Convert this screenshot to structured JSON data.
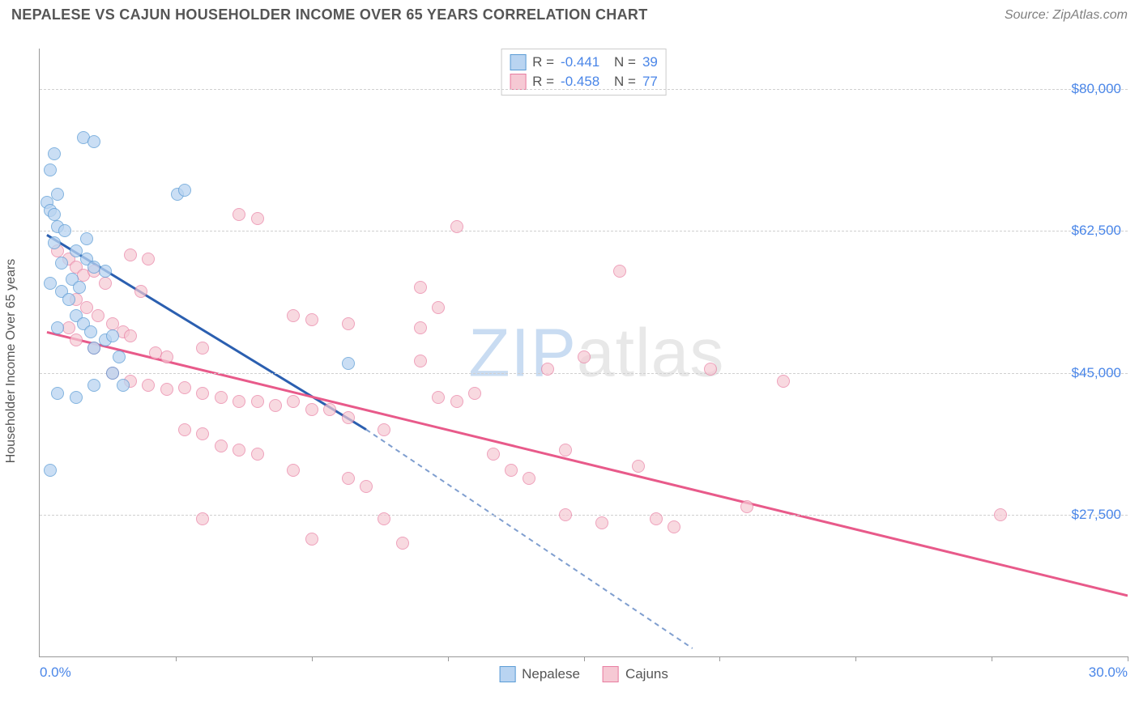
{
  "header": {
    "title": "NEPALESE VS CAJUN HOUSEHOLDER INCOME OVER 65 YEARS CORRELATION CHART",
    "source_prefix": "Source: ",
    "source_name": "ZipAtlas.com"
  },
  "watermark": {
    "part1": "ZIP",
    "part2": "atlas"
  },
  "chart": {
    "type": "scatter",
    "background_color": "#ffffff",
    "grid_color": "#d0d0d0",
    "axis_color": "#999999",
    "ylabel": "Householder Income Over 65 years",
    "ylabel_color": "#555555",
    "xlim": [
      0,
      30
    ],
    "ylim": [
      10000,
      85000
    ],
    "xrange_labels": {
      "min": "0.0%",
      "max": "30.0%"
    },
    "xrange_label_color": "#4a86e8",
    "yticks": [
      {
        "v": 80000,
        "label": "$80,000"
      },
      {
        "v": 62500,
        "label": "$62,500"
      },
      {
        "v": 45000,
        "label": "$45,000"
      },
      {
        "v": 27500,
        "label": "$27,500"
      }
    ],
    "ytick_label_color": "#4a86e8",
    "xticks_positions": [
      3.75,
      7.5,
      11.25,
      15,
      18.75,
      22.5,
      26.25,
      30
    ],
    "point_radius": 8,
    "point_border_width": 1.2,
    "series": [
      {
        "name": "Nepalese",
        "fill": "#b9d4f1",
        "stroke": "#5a9bd5",
        "line_color": "#2b5fb0",
        "line_dash": "6 5",
        "opacity": 0.75,
        "R": "-0.441",
        "N": "39",
        "reg_solid": {
          "x1": 0.2,
          "y1": 62000,
          "x2": 9.0,
          "y2": 38000
        },
        "reg_dash": {
          "x1": 9.0,
          "y1": 38000,
          "x2": 18.0,
          "y2": 11000
        },
        "points": [
          {
            "x": 0.3,
            "y": 70000
          },
          {
            "x": 0.4,
            "y": 72000
          },
          {
            "x": 0.5,
            "y": 67000
          },
          {
            "x": 1.2,
            "y": 74000
          },
          {
            "x": 1.5,
            "y": 73500
          },
          {
            "x": 0.2,
            "y": 66000
          },
          {
            "x": 0.3,
            "y": 65000
          },
          {
            "x": 0.5,
            "y": 63000
          },
          {
            "x": 0.4,
            "y": 61000
          },
          {
            "x": 1.0,
            "y": 60000
          },
          {
            "x": 1.3,
            "y": 59000
          },
          {
            "x": 1.5,
            "y": 58000
          },
          {
            "x": 0.3,
            "y": 56000
          },
          {
            "x": 0.6,
            "y": 55000
          },
          {
            "x": 0.8,
            "y": 54000
          },
          {
            "x": 1.0,
            "y": 52000
          },
          {
            "x": 1.2,
            "y": 51000
          },
          {
            "x": 1.4,
            "y": 50000
          },
          {
            "x": 1.8,
            "y": 49000
          },
          {
            "x": 2.0,
            "y": 49500
          },
          {
            "x": 1.5,
            "y": 48000
          },
          {
            "x": 2.2,
            "y": 47000
          },
          {
            "x": 0.5,
            "y": 42500
          },
          {
            "x": 1.0,
            "y": 42000
          },
          {
            "x": 1.5,
            "y": 43500
          },
          {
            "x": 0.3,
            "y": 33000
          },
          {
            "x": 3.8,
            "y": 67000
          },
          {
            "x": 4.0,
            "y": 67500
          },
          {
            "x": 8.5,
            "y": 46200
          },
          {
            "x": 1.8,
            "y": 57500
          },
          {
            "x": 0.6,
            "y": 58500
          },
          {
            "x": 0.9,
            "y": 56500
          },
          {
            "x": 1.1,
            "y": 55500
          },
          {
            "x": 0.4,
            "y": 64500
          },
          {
            "x": 0.7,
            "y": 62500
          },
          {
            "x": 1.3,
            "y": 61500
          },
          {
            "x": 0.5,
            "y": 50500
          },
          {
            "x": 2.0,
            "y": 45000
          },
          {
            "x": 2.3,
            "y": 43500
          }
        ]
      },
      {
        "name": "Cajuns",
        "fill": "#f6c9d4",
        "stroke": "#e87ca0",
        "line_color": "#e85a8a",
        "line_dash": "",
        "opacity": 0.7,
        "R": "-0.458",
        "N": "77",
        "reg_solid": {
          "x1": 0.2,
          "y1": 50000,
          "x2": 30.0,
          "y2": 17500
        },
        "reg_dash": null,
        "points": [
          {
            "x": 0.5,
            "y": 60000
          },
          {
            "x": 0.8,
            "y": 59000
          },
          {
            "x": 1.0,
            "y": 58000
          },
          {
            "x": 1.2,
            "y": 57000
          },
          {
            "x": 1.5,
            "y": 57500
          },
          {
            "x": 1.8,
            "y": 56000
          },
          {
            "x": 1.0,
            "y": 54000
          },
          {
            "x": 1.3,
            "y": 53000
          },
          {
            "x": 1.6,
            "y": 52000
          },
          {
            "x": 2.0,
            "y": 51000
          },
          {
            "x": 2.3,
            "y": 50000
          },
          {
            "x": 0.8,
            "y": 50500
          },
          {
            "x": 1.0,
            "y": 49000
          },
          {
            "x": 1.5,
            "y": 48000
          },
          {
            "x": 2.5,
            "y": 49500
          },
          {
            "x": 2.8,
            "y": 55000
          },
          {
            "x": 2.5,
            "y": 59500
          },
          {
            "x": 3.0,
            "y": 59000
          },
          {
            "x": 3.2,
            "y": 47500
          },
          {
            "x": 3.5,
            "y": 47000
          },
          {
            "x": 2.0,
            "y": 45000
          },
          {
            "x": 2.5,
            "y": 44000
          },
          {
            "x": 3.0,
            "y": 43500
          },
          {
            "x": 3.5,
            "y": 43000
          },
          {
            "x": 4.0,
            "y": 43200
          },
          {
            "x": 4.5,
            "y": 42500
          },
          {
            "x": 4.5,
            "y": 48000
          },
          {
            "x": 5.0,
            "y": 42000
          },
          {
            "x": 5.5,
            "y": 41500
          },
          {
            "x": 5.5,
            "y": 64500
          },
          {
            "x": 6.0,
            "y": 64000
          },
          {
            "x": 6.0,
            "y": 41500
          },
          {
            "x": 6.5,
            "y": 41000
          },
          {
            "x": 7.0,
            "y": 41500
          },
          {
            "x": 7.5,
            "y": 40500
          },
          {
            "x": 4.0,
            "y": 38000
          },
          {
            "x": 4.5,
            "y": 37500
          },
          {
            "x": 5.0,
            "y": 36000
          },
          {
            "x": 5.5,
            "y": 35500
          },
          {
            "x": 6.0,
            "y": 35000
          },
          {
            "x": 7.0,
            "y": 33000
          },
          {
            "x": 8.0,
            "y": 40500
          },
          {
            "x": 8.5,
            "y": 39500
          },
          {
            "x": 8.5,
            "y": 32000
          },
          {
            "x": 9.0,
            "y": 31000
          },
          {
            "x": 9.5,
            "y": 38000
          },
          {
            "x": 9.5,
            "y": 27000
          },
          {
            "x": 10.0,
            "y": 24000
          },
          {
            "x": 10.5,
            "y": 46500
          },
          {
            "x": 10.5,
            "y": 55500
          },
          {
            "x": 11.0,
            "y": 53000
          },
          {
            "x": 11.0,
            "y": 42000
          },
          {
            "x": 11.5,
            "y": 63000
          },
          {
            "x": 11.5,
            "y": 41500
          },
          {
            "x": 7.0,
            "y": 52000
          },
          {
            "x": 7.5,
            "y": 51500
          },
          {
            "x": 8.5,
            "y": 51000
          },
          {
            "x": 10.5,
            "y": 50500
          },
          {
            "x": 12.0,
            "y": 42500
          },
          {
            "x": 12.5,
            "y": 35000
          },
          {
            "x": 13.0,
            "y": 33000
          },
          {
            "x": 13.5,
            "y": 32000
          },
          {
            "x": 14.0,
            "y": 45500
          },
          {
            "x": 14.5,
            "y": 35500
          },
          {
            "x": 14.5,
            "y": 27500
          },
          {
            "x": 15.0,
            "y": 47000
          },
          {
            "x": 15.5,
            "y": 26500
          },
          {
            "x": 16.0,
            "y": 57500
          },
          {
            "x": 16.5,
            "y": 33500
          },
          {
            "x": 17.0,
            "y": 27000
          },
          {
            "x": 17.5,
            "y": 26000
          },
          {
            "x": 18.5,
            "y": 45500
          },
          {
            "x": 19.5,
            "y": 28500
          },
          {
            "x": 20.5,
            "y": 44000
          },
          {
            "x": 26.5,
            "y": 27500
          },
          {
            "x": 4.5,
            "y": 27000
          },
          {
            "x": 7.5,
            "y": 24500
          }
        ]
      }
    ]
  },
  "stats_box": {
    "r_prefix": "R = ",
    "n_prefix": "N = "
  },
  "bottom_legend": {
    "items": [
      "Nepalese",
      "Cajuns"
    ]
  }
}
